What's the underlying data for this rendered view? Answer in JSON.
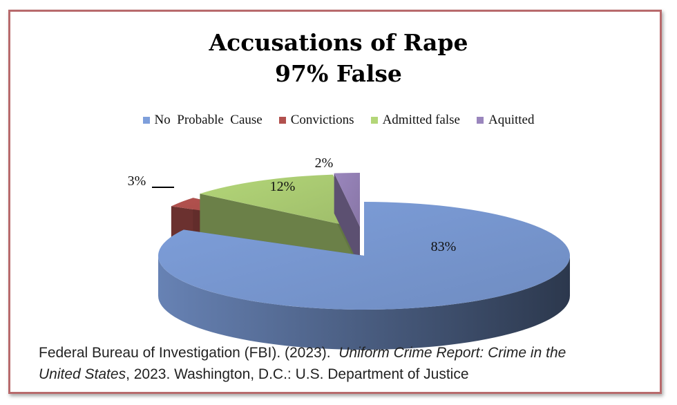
{
  "chart_data": {
    "type": "pie",
    "title": [
      "Accusations of Rape",
      "97% False"
    ],
    "legend_position": "top",
    "slices": [
      {
        "label": "No  Probable  Cause",
        "value": 83,
        "display": "83%",
        "color": "#7e9fdb"
      },
      {
        "label": "Convictions",
        "value": 3,
        "display": "3%",
        "color": "#b2514e"
      },
      {
        "label": "Admitted false",
        "value": 12,
        "display": "12%",
        "color": "#b3d678"
      },
      {
        "label": "Aquitted",
        "value": 2,
        "display": "2%",
        "color": "#9a86bd"
      }
    ]
  },
  "source": {
    "part1": "Federal Bureau of Investigation (FBI). (2023).  ",
    "part2": "Uniform Crime Report: Crime in the",
    "part3": "United States",
    "part4": ", 2023. Washington, D.C.: U.S. Department of Justice"
  }
}
